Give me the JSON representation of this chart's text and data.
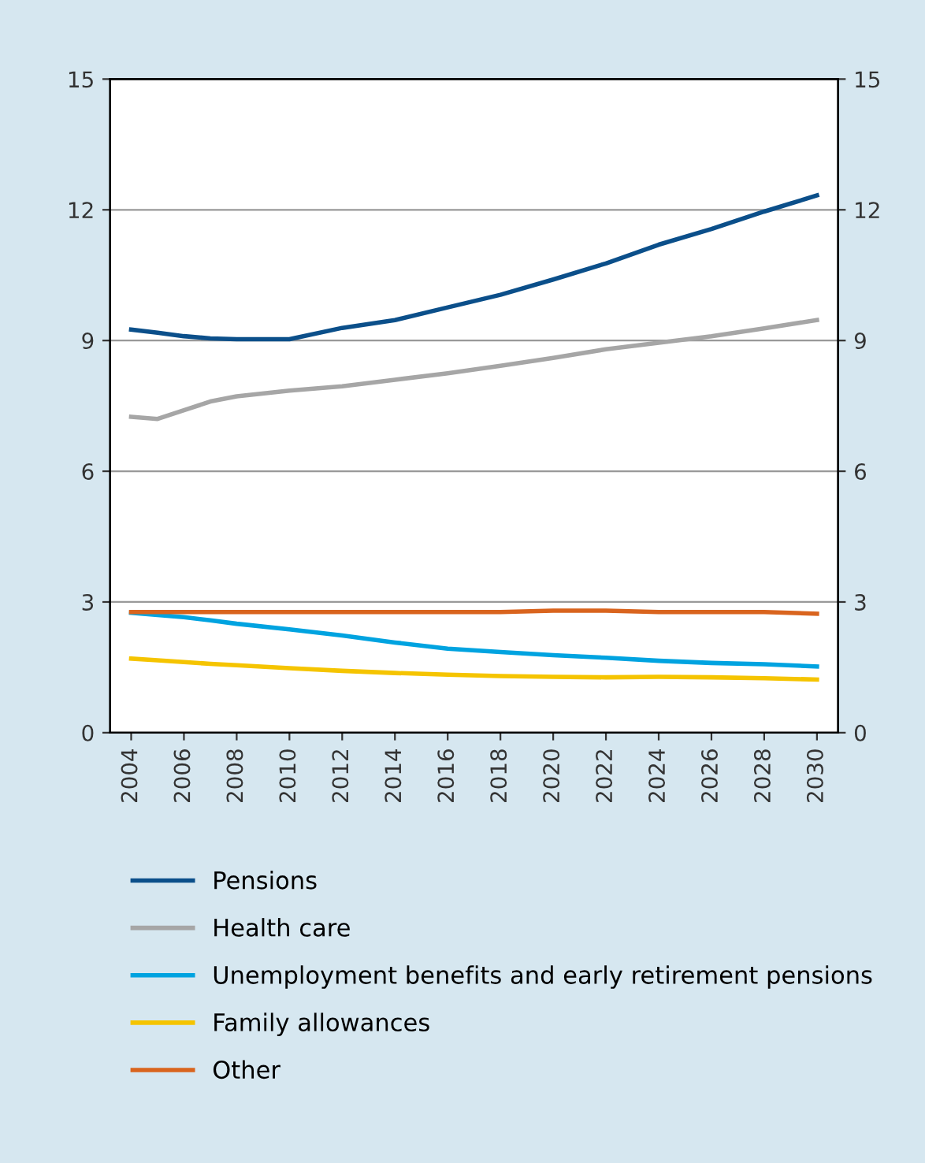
{
  "chart_data": {
    "type": "line",
    "x": [
      2004,
      2005,
      2006,
      2007,
      2008,
      2010,
      2012,
      2014,
      2016,
      2018,
      2020,
      2022,
      2024,
      2026,
      2028,
      2030
    ],
    "series": [
      {
        "name": "Pensions",
        "color": "#0b4f8a",
        "values": [
          9.25,
          9.18,
          9.1,
          9.05,
          9.03,
          9.03,
          9.29,
          9.47,
          9.76,
          10.05,
          10.4,
          10.77,
          11.2,
          11.56,
          11.96,
          12.33
        ]
      },
      {
        "name": "Health care",
        "color": "#a6a6a6",
        "values": [
          7.25,
          7.2,
          7.4,
          7.6,
          7.72,
          7.85,
          7.95,
          8.1,
          8.25,
          8.42,
          8.6,
          8.8,
          8.95,
          9.1,
          9.28,
          9.47
        ]
      },
      {
        "name": "Unemployment benefits and early retirement pensions",
        "color": "#00a3e0",
        "values": [
          2.75,
          2.7,
          2.65,
          2.58,
          2.5,
          2.37,
          2.23,
          2.07,
          1.93,
          1.85,
          1.78,
          1.72,
          1.65,
          1.6,
          1.57,
          1.52
        ]
      },
      {
        "name": "Family allowances",
        "color": "#f5c400",
        "values": [
          1.7,
          1.66,
          1.62,
          1.58,
          1.55,
          1.48,
          1.42,
          1.37,
          1.33,
          1.3,
          1.28,
          1.27,
          1.28,
          1.27,
          1.25,
          1.22
        ]
      },
      {
        "name": "Other",
        "color": "#d9641e",
        "values": [
          2.77,
          2.77,
          2.77,
          2.77,
          2.77,
          2.77,
          2.77,
          2.77,
          2.77,
          2.77,
          2.8,
          2.8,
          2.77,
          2.77,
          2.77,
          2.73
        ]
      }
    ],
    "xlim": [
      2003.2,
      2030.8
    ],
    "xticks": [
      2004,
      2006,
      2008,
      2010,
      2012,
      2014,
      2016,
      2018,
      2020,
      2022,
      2024,
      2026,
      2028,
      2030
    ],
    "ylim": [
      0,
      15
    ],
    "yticks": [
      0,
      3,
      6,
      9,
      12,
      15
    ],
    "y2lim": [
      0,
      15
    ],
    "y2ticks": [
      0,
      3,
      6,
      9,
      12,
      15
    ],
    "grid": "y",
    "legend": "bottom",
    "marker": "none",
    "line_style": "solid"
  }
}
